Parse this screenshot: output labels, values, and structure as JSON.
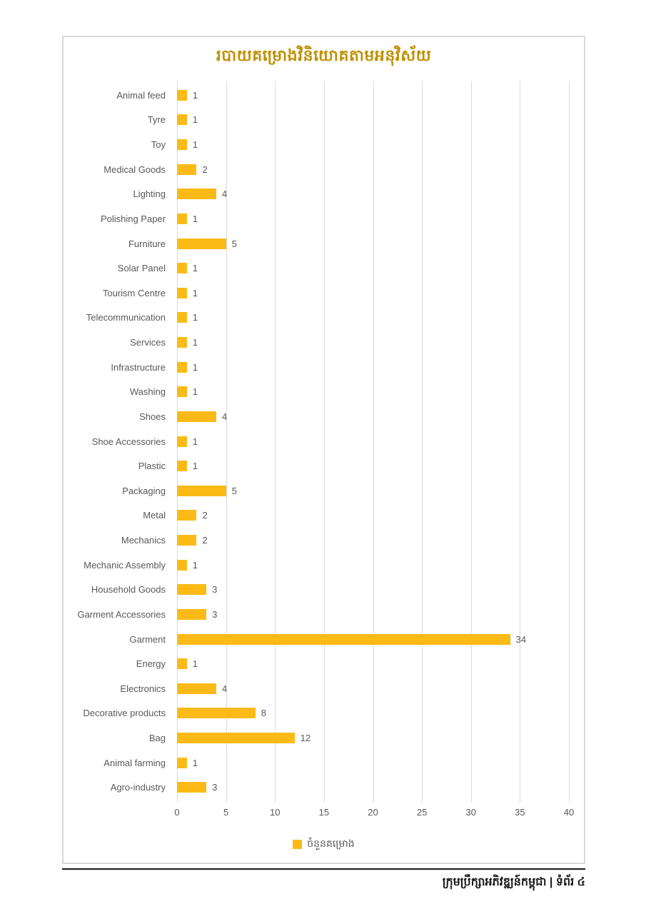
{
  "chart": {
    "title": "របាយគម្រោងវិនិយោគតាមអនុវិស័យ",
    "legend_label": "ចំនួនគម្រោង"
  },
  "chart_data": {
    "type": "bar",
    "orientation": "horizontal",
    "title": "របាយគម្រោងវិនិយោគតាមអនុវិស័យ",
    "legend": [
      "ចំនួនគម្រោង"
    ],
    "legend_position": "bottom",
    "grid": true,
    "xlabel": "",
    "ylabel": "",
    "xlim": [
      0,
      41.5
    ],
    "xticks": [
      0,
      5,
      10,
      15,
      20,
      25,
      30,
      35,
      40
    ],
    "categories": [
      "Animal feed",
      "Tyre",
      "Toy",
      "Medical Goods",
      "Lighting",
      "Polishing Paper",
      "Furniture",
      "Solar Panel",
      "Tourism Centre",
      "Telecommunication",
      "Services",
      "Infrastructure",
      "Washing",
      "Shoes",
      "Shoe Accessories",
      "Plastic",
      "Packaging",
      "Metal",
      "Mechanics",
      "Mechanic Assembly",
      "Household Goods",
      "Garment Accessories",
      "Garment",
      "Energy",
      "Electronics",
      "Decorative products",
      "Bag",
      "Animal farming",
      "Agro-industry"
    ],
    "values": [
      1,
      1,
      1,
      2,
      4,
      1,
      5,
      1,
      1,
      1,
      1,
      1,
      1,
      4,
      1,
      1,
      5,
      2,
      2,
      1,
      3,
      3,
      34,
      1,
      4,
      8,
      12,
      1,
      3
    ],
    "bar_color": "#fbba16",
    "title_color": "#bf9000",
    "label_color": "#595959",
    "gridline_color": "#d9d9d9"
  },
  "footer": {
    "text": "ក្រុមប្រឹក្សាអភិវឌ្ឍន៍កម្ពុជា | ទំព័រ ៤"
  }
}
